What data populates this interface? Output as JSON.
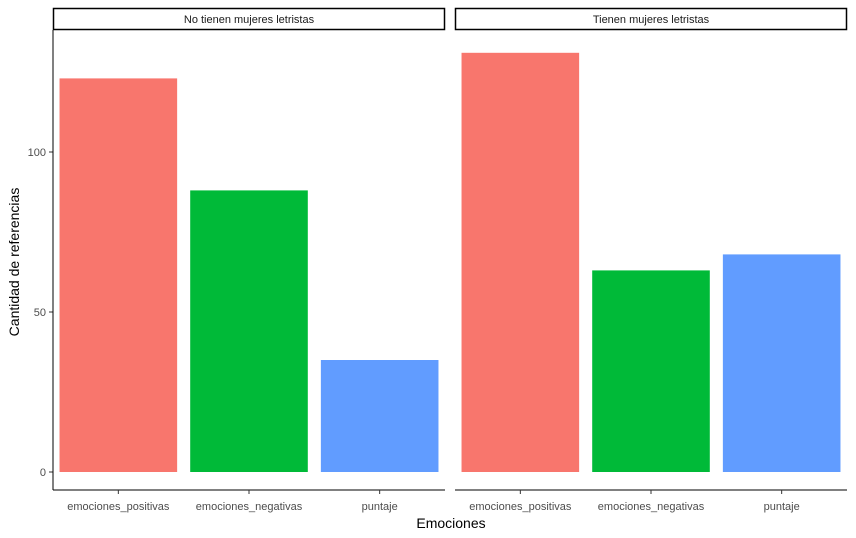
{
  "chart_data": {
    "type": "bar",
    "xlabel": "Emociones",
    "ylabel": "Cantidad de referencias",
    "ylim": [
      0,
      135
    ],
    "yticks": [
      0,
      50,
      100
    ],
    "grid": false,
    "legend": "none",
    "categories": [
      "emociones_positivas",
      "emociones_negativas",
      "puntaje"
    ],
    "colors": [
      "#F8766D",
      "#00BA38",
      "#619CFF"
    ],
    "panels": [
      {
        "title": "No tienen mujeres letristas",
        "values": [
          123,
          88,
          35
        ]
      },
      {
        "title": "Tienen mujeres letristas",
        "values": [
          131,
          63,
          68
        ]
      }
    ]
  }
}
